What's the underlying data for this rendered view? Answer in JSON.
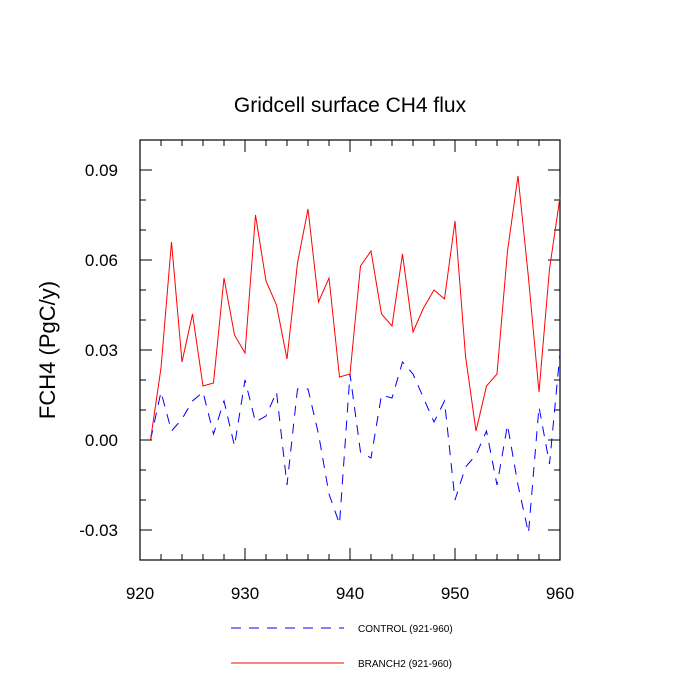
{
  "chart_data": {
    "type": "line",
    "title": "Gridcell surface CH4 flux",
    "xlabel": "",
    "ylabel": "FCH4  (PgC/y)",
    "xlim": [
      920,
      960
    ],
    "ylim": [
      -0.04,
      0.1
    ],
    "x_ticks": [
      "920",
      "930",
      "940",
      "950",
      "960"
    ],
    "y_ticks": [
      "-0.03",
      "0.00",
      "0.03",
      "0.06",
      "0.09"
    ],
    "legend_position": "bottom",
    "x": [
      921,
      922,
      923,
      924,
      925,
      926,
      927,
      928,
      929,
      930,
      931,
      932,
      933,
      934,
      935,
      936,
      937,
      938,
      939,
      940,
      941,
      942,
      943,
      944,
      945,
      946,
      947,
      948,
      949,
      950,
      951,
      952,
      953,
      954,
      955,
      956,
      957,
      958,
      959,
      960
    ],
    "series": [
      {
        "name": "CONTROL (921-960)",
        "color": "#0000ff",
        "dash": "dashed",
        "values": [
          0.0,
          0.016,
          0.003,
          0.007,
          0.013,
          0.016,
          0.002,
          0.013,
          -0.002,
          0.02,
          0.006,
          0.008,
          0.016,
          -0.015,
          0.017,
          0.017,
          0.002,
          -0.018,
          -0.028,
          0.022,
          -0.004,
          -0.006,
          0.015,
          0.014,
          0.026,
          0.022,
          0.014,
          0.006,
          0.013,
          -0.02,
          -0.009,
          -0.005,
          0.003,
          -0.015,
          0.005,
          -0.015,
          -0.031,
          0.011,
          -0.008,
          0.029
        ]
      },
      {
        "name": "BRANCH2 (921-960)",
        "color": "#ff0000",
        "dash": "solid",
        "values": [
          0.0,
          0.024,
          0.066,
          0.026,
          0.042,
          0.018,
          0.019,
          0.054,
          0.035,
          0.029,
          0.075,
          0.053,
          0.045,
          0.027,
          0.059,
          0.077,
          0.046,
          0.054,
          0.021,
          0.022,
          0.058,
          0.063,
          0.042,
          0.038,
          0.062,
          0.036,
          0.044,
          0.05,
          0.047,
          0.073,
          0.028,
          0.003,
          0.018,
          0.022,
          0.063,
          0.088,
          0.054,
          0.016,
          0.057,
          0.081
        ]
      }
    ]
  }
}
